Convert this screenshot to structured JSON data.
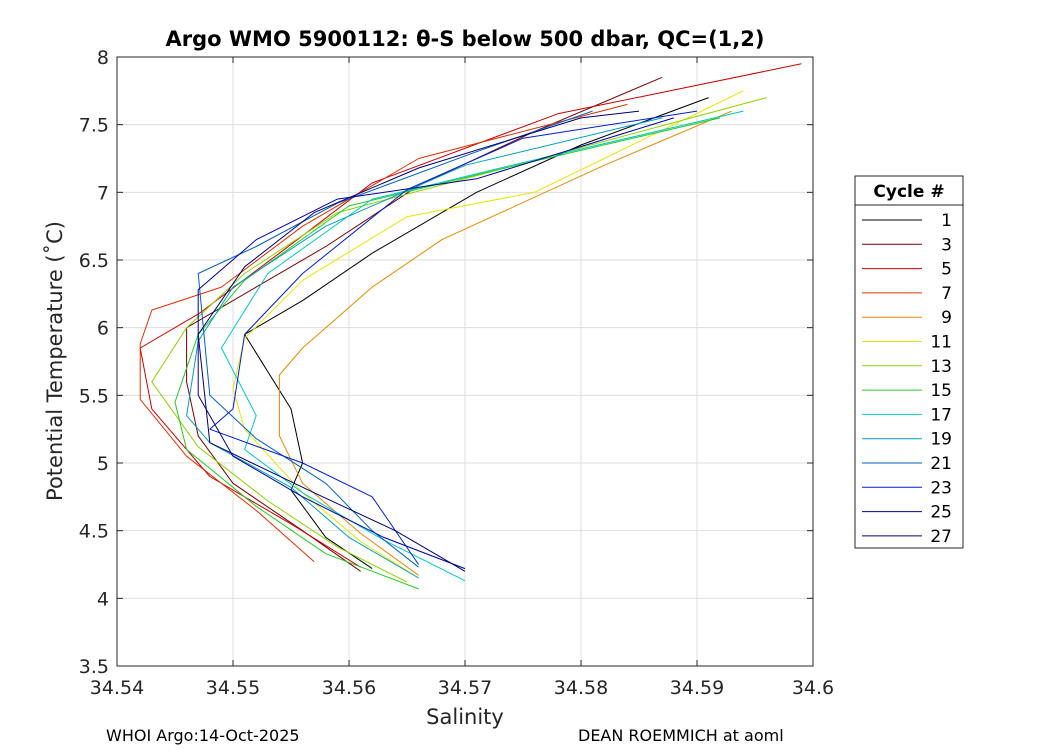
{
  "chart_data": {
    "type": "line",
    "title": "Argo WMO 5900112: θ-S below 500 dbar,  QC=(1,2)",
    "xlabel": "Salinity",
    "ylabel": "Potential Temperature (˚C)",
    "xlim": [
      34.54,
      34.6
    ],
    "ylim": [
      3.5,
      8
    ],
    "xticks": [
      34.54,
      34.55,
      34.56,
      34.57,
      34.58,
      34.59,
      34.6
    ],
    "xtick_labels": [
      "34.54",
      "34.55",
      "34.56",
      "34.57",
      "34.58",
      "34.59",
      "34.6"
    ],
    "yticks": [
      3.5,
      4,
      4.5,
      5,
      5.5,
      6,
      6.5,
      7,
      7.5,
      8
    ],
    "ytick_labels": [
      "3.5",
      "4",
      "4.5",
      "5",
      "5.5",
      "6",
      "6.5",
      "7",
      "7.5",
      "8"
    ],
    "grid": true,
    "legend_title": "Cycle #",
    "legend_position": "outside-right",
    "series": [
      {
        "name": "1",
        "color": "#000000",
        "points": [
          [
            34.562,
            4.22
          ],
          [
            34.558,
            4.45
          ],
          [
            34.555,
            4.8
          ],
          [
            34.556,
            5.0
          ],
          [
            34.555,
            5.4
          ],
          [
            34.551,
            5.95
          ],
          [
            34.556,
            6.2
          ],
          [
            34.562,
            6.55
          ],
          [
            34.571,
            7.0
          ],
          [
            34.58,
            7.35
          ],
          [
            34.591,
            7.7
          ]
        ]
      },
      {
        "name": "3",
        "color": "#7a0000",
        "points": [
          [
            34.561,
            4.2
          ],
          [
            34.556,
            4.5
          ],
          [
            34.55,
            4.85
          ],
          [
            34.547,
            5.2
          ],
          [
            34.546,
            5.6
          ],
          [
            34.546,
            6.0
          ],
          [
            34.552,
            6.3
          ],
          [
            34.558,
            6.6
          ],
          [
            34.566,
            7.05
          ],
          [
            34.576,
            7.45
          ],
          [
            34.587,
            7.85
          ]
        ]
      },
      {
        "name": "5",
        "color": "#cc0000",
        "points": [
          [
            34.561,
            4.23
          ],
          [
            34.555,
            4.55
          ],
          [
            34.548,
            4.9
          ],
          [
            34.543,
            5.4
          ],
          [
            34.542,
            5.85
          ],
          [
            34.547,
            6.1
          ],
          [
            34.554,
            6.55
          ],
          [
            34.562,
            7.07
          ],
          [
            34.578,
            7.58
          ],
          [
            34.599,
            7.95
          ]
        ]
      },
      {
        "name": "7",
        "color": "#e03000",
        "points": [
          [
            34.557,
            4.27
          ],
          [
            34.552,
            4.65
          ],
          [
            34.546,
            5.05
          ],
          [
            34.542,
            5.47
          ],
          [
            34.542,
            5.88
          ],
          [
            34.543,
            6.13
          ],
          [
            34.549,
            6.3
          ],
          [
            34.556,
            6.75
          ],
          [
            34.566,
            7.25
          ],
          [
            34.584,
            7.65
          ]
        ]
      },
      {
        "name": "9",
        "color": "#e88a00",
        "points": [
          [
            34.566,
            4.17
          ],
          [
            34.561,
            4.48
          ],
          [
            34.556,
            4.85
          ],
          [
            34.554,
            5.2
          ],
          [
            34.554,
            5.65
          ],
          [
            34.556,
            5.85
          ],
          [
            34.562,
            6.3
          ],
          [
            34.568,
            6.65
          ],
          [
            34.582,
            7.2
          ],
          [
            34.593,
            7.6
          ]
        ]
      },
      {
        "name": "11",
        "color": "#e6e600",
        "points": [
          [
            34.566,
            4.15
          ],
          [
            34.561,
            4.42
          ],
          [
            34.556,
            4.78
          ],
          [
            34.551,
            5.25
          ],
          [
            34.55,
            5.55
          ],
          [
            34.551,
            5.92
          ],
          [
            34.556,
            6.35
          ],
          [
            34.565,
            6.82
          ],
          [
            34.576,
            7.0
          ],
          [
            34.594,
            7.75
          ]
        ]
      },
      {
        "name": "13",
        "color": "#8ed400",
        "points": [
          [
            34.565,
            4.12
          ],
          [
            34.559,
            4.38
          ],
          [
            34.553,
            4.72
          ],
          [
            34.547,
            5.12
          ],
          [
            34.543,
            5.6
          ],
          [
            34.546,
            6.0
          ],
          [
            34.551,
            6.4
          ],
          [
            34.559,
            6.85
          ],
          [
            34.57,
            7.1
          ],
          [
            34.596,
            7.7
          ]
        ]
      },
      {
        "name": "15",
        "color": "#22cc22",
        "points": [
          [
            34.566,
            4.07
          ],
          [
            34.558,
            4.33
          ],
          [
            34.552,
            4.68
          ],
          [
            34.546,
            5.1
          ],
          [
            34.545,
            5.45
          ],
          [
            34.547,
            5.95
          ],
          [
            34.551,
            6.35
          ],
          [
            34.56,
            6.9
          ],
          [
            34.572,
            7.15
          ],
          [
            34.592,
            7.55
          ]
        ]
      },
      {
        "name": "17",
        "color": "#00c8c8",
        "points": [
          [
            34.57,
            4.13
          ],
          [
            34.563,
            4.43
          ],
          [
            34.556,
            4.78
          ],
          [
            34.551,
            5.1
          ],
          [
            34.552,
            5.35
          ],
          [
            34.549,
            5.85
          ],
          [
            34.553,
            6.4
          ],
          [
            34.562,
            6.95
          ],
          [
            34.574,
            7.2
          ],
          [
            34.594,
            7.6
          ]
        ]
      },
      {
        "name": "19",
        "color": "#00a0c0",
        "points": [
          [
            34.566,
            4.15
          ],
          [
            34.56,
            4.45
          ],
          [
            34.555,
            4.82
          ],
          [
            34.548,
            5.15
          ],
          [
            34.546,
            5.35
          ],
          [
            34.547,
            5.9
          ],
          [
            34.55,
            6.3
          ],
          [
            34.558,
            6.75
          ],
          [
            34.57,
            7.2
          ],
          [
            34.587,
            7.55
          ]
        ]
      },
      {
        "name": "21",
        "color": "#0060c0",
        "points": [
          [
            34.566,
            4.23
          ],
          [
            34.562,
            4.5
          ],
          [
            34.558,
            4.85
          ],
          [
            34.552,
            5.18
          ],
          [
            34.548,
            5.5
          ],
          [
            34.547,
            6.4
          ],
          [
            34.552,
            6.6
          ],
          [
            34.559,
            6.92
          ],
          [
            34.571,
            7.3
          ],
          [
            34.581,
            7.6
          ]
        ]
      },
      {
        "name": "23",
        "color": "#0020d0",
        "points": [
          [
            34.566,
            4.25
          ],
          [
            34.562,
            4.75
          ],
          [
            34.556,
            5.0
          ],
          [
            34.548,
            5.25
          ],
          [
            34.55,
            5.4
          ],
          [
            34.551,
            5.95
          ],
          [
            34.556,
            6.4
          ],
          [
            34.565,
            7.02
          ],
          [
            34.575,
            7.4
          ],
          [
            34.59,
            7.6
          ]
        ]
      },
      {
        "name": "25",
        "color": "#0000a0",
        "points": [
          [
            34.57,
            4.22
          ],
          [
            34.563,
            4.45
          ],
          [
            34.556,
            4.75
          ],
          [
            34.55,
            5.05
          ],
          [
            34.547,
            5.5
          ],
          [
            34.547,
            6.28
          ],
          [
            34.552,
            6.65
          ],
          [
            34.559,
            6.95
          ],
          [
            34.571,
            7.1
          ],
          [
            34.588,
            7.55
          ]
        ]
      },
      {
        "name": "27",
        "color": "#000070",
        "points": [
          [
            34.57,
            4.2
          ],
          [
            34.564,
            4.5
          ],
          [
            34.557,
            4.78
          ],
          [
            34.548,
            5.15
          ],
          [
            34.547,
            5.95
          ],
          [
            34.551,
            6.45
          ],
          [
            34.557,
            6.85
          ],
          [
            34.566,
            7.18
          ],
          [
            34.58,
            7.55
          ],
          [
            34.585,
            7.6
          ]
        ]
      }
    ]
  },
  "footer": {
    "left": "WHOI Argo:14-Oct-2025",
    "right": "DEAN ROEMMICH at aoml"
  }
}
